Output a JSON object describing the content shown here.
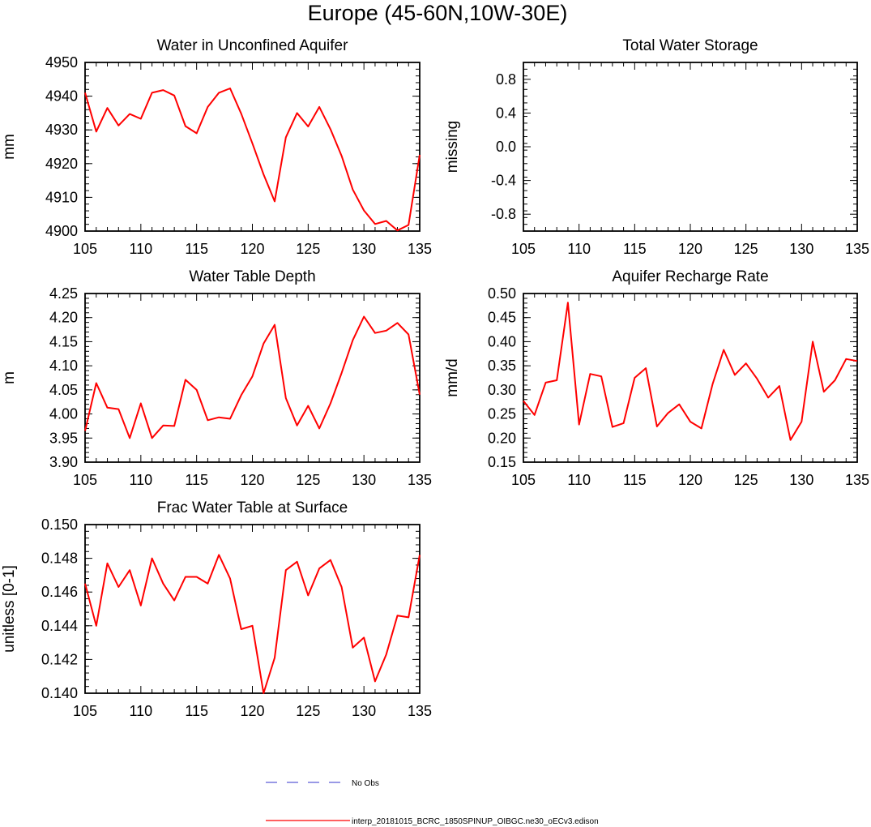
{
  "figure_title": "Europe (45-60N,10W-30E)",
  "legend": {
    "obs_label": "No Obs",
    "obs_color": "#3333cc",
    "model_label": "interp_20181015_BCRC_1850SPINUP_OIBGC.ne30_oECv3.edison",
    "model_color": "#ff0000"
  },
  "chart_data": [
    {
      "type": "line",
      "title": "Water in Unconfined Aquifer",
      "xlabel": "",
      "ylabel": "mm",
      "xlim": [
        105,
        135
      ],
      "ylim": [
        4900,
        4950
      ],
      "xticks": [
        105,
        110,
        115,
        120,
        125,
        130,
        135
      ],
      "yticks": [
        4900,
        4910,
        4920,
        4930,
        4940,
        4950
      ],
      "ytick_labels": [
        "4900",
        "4910",
        "4920",
        "4930",
        "4940",
        "4950"
      ],
      "x": [
        105,
        106,
        107,
        108,
        109,
        110,
        111,
        112,
        113,
        114,
        115,
        116,
        117,
        118,
        119,
        120,
        121,
        122,
        123,
        124,
        125,
        126,
        127,
        128,
        129,
        130,
        131,
        132,
        133,
        134,
        135
      ],
      "series": [
        {
          "name": "interp_20181015_BCRC_1850SPINUP_OIBGC.ne30_oECv3.edison",
          "values": [
            4941,
            4929.5,
            4936.5,
            4931.3,
            4934.7,
            4933.3,
            4941,
            4941.8,
            4940.2,
            4931.1,
            4929,
            4936.8,
            4941,
            4942.3,
            4934.8,
            4926,
            4916.8,
            4908.8,
            4927.8,
            4935,
            4931,
            4936.8,
            4930.2,
            4922.3,
            4912.3,
            4906.1,
            4902.1,
            4903,
            4900.2,
            4901.8,
            4922.6
          ]
        }
      ]
    },
    {
      "type": "line",
      "title": "Total Water Storage",
      "xlabel": "",
      "ylabel": "missing",
      "xlim": [
        105,
        135
      ],
      "ylim": [
        -1.0,
        1.0
      ],
      "xticks": [
        105,
        110,
        115,
        120,
        125,
        130,
        135
      ],
      "yticks": [
        -0.8,
        -0.4,
        0.0,
        0.4,
        0.8
      ],
      "ytick_labels": [
        "-0.8",
        "-0.4",
        "0.0",
        "0.4",
        "0.8"
      ],
      "x": [],
      "series": []
    },
    {
      "type": "line",
      "title": "Water Table Depth",
      "xlabel": "",
      "ylabel": "m",
      "xlim": [
        105,
        135
      ],
      "ylim": [
        3.9,
        4.25
      ],
      "xticks": [
        105,
        110,
        115,
        120,
        125,
        130,
        135
      ],
      "yticks": [
        3.9,
        3.95,
        4.0,
        4.05,
        4.1,
        4.15,
        4.2,
        4.25
      ],
      "ytick_labels": [
        "3.90",
        "3.95",
        "4.00",
        "4.05",
        "4.10",
        "4.15",
        "4.20",
        "4.25"
      ],
      "x": [
        105,
        106,
        107,
        108,
        109,
        110,
        111,
        112,
        113,
        114,
        115,
        116,
        117,
        118,
        119,
        120,
        121,
        122,
        123,
        124,
        125,
        126,
        127,
        128,
        129,
        130,
        131,
        132,
        133,
        134,
        135
      ],
      "series": [
        {
          "name": "interp_20181015_BCRC_1850SPINUP_OIBGC.ne30_oECv3.edison",
          "values": [
            3.965,
            4.064,
            4.013,
            4.01,
            3.95,
            4.022,
            3.95,
            3.976,
            3.975,
            4.071,
            4.05,
            3.987,
            3.993,
            3.99,
            4.039,
            4.078,
            4.146,
            4.185,
            4.033,
            3.976,
            4.017,
            3.97,
            4.022,
            4.085,
            4.153,
            4.202,
            4.168,
            4.173,
            4.189,
            4.165,
            4.04
          ]
        }
      ]
    },
    {
      "type": "line",
      "title": "Aquifer Recharge Rate",
      "xlabel": "",
      "ylabel": "mm/d",
      "xlim": [
        105,
        135
      ],
      "ylim": [
        0.15,
        0.5
      ],
      "xticks": [
        105,
        110,
        115,
        120,
        125,
        130,
        135
      ],
      "yticks": [
        0.15,
        0.2,
        0.25,
        0.3,
        0.35,
        0.4,
        0.45,
        0.5
      ],
      "ytick_labels": [
        "0.15",
        "0.20",
        "0.25",
        "0.30",
        "0.35",
        "0.40",
        "0.45",
        "0.50"
      ],
      "x": [
        105,
        106,
        107,
        108,
        109,
        110,
        111,
        112,
        113,
        114,
        115,
        116,
        117,
        118,
        119,
        120,
        121,
        122,
        123,
        124,
        125,
        126,
        127,
        128,
        129,
        130,
        131,
        132,
        133,
        134,
        135
      ],
      "series": [
        {
          "name": "interp_20181015_BCRC_1850SPINUP_OIBGC.ne30_oECv3.edison",
          "values": [
            0.277,
            0.248,
            0.315,
            0.32,
            0.481,
            0.228,
            0.333,
            0.328,
            0.223,
            0.231,
            0.325,
            0.345,
            0.224,
            0.252,
            0.27,
            0.234,
            0.22,
            0.312,
            0.383,
            0.331,
            0.355,
            0.323,
            0.284,
            0.308,
            0.196,
            0.234,
            0.4,
            0.296,
            0.32,
            0.364,
            0.36
          ]
        }
      ]
    },
    {
      "type": "line",
      "title": "Frac Water Table at Surface",
      "xlabel": "",
      "ylabel": "unitless [0-1]",
      "xlim": [
        105,
        135
      ],
      "ylim": [
        0.14,
        0.15
      ],
      "xticks": [
        105,
        110,
        115,
        120,
        125,
        130,
        135
      ],
      "yticks": [
        0.14,
        0.142,
        0.144,
        0.146,
        0.148,
        0.15
      ],
      "ytick_labels": [
        "0.140",
        "0.142",
        "0.144",
        "0.146",
        "0.148",
        "0.150"
      ],
      "x": [
        105,
        106,
        107,
        108,
        109,
        110,
        111,
        112,
        113,
        114,
        115,
        116,
        117,
        118,
        119,
        120,
        121,
        122,
        123,
        124,
        125,
        126,
        127,
        128,
        129,
        130,
        131,
        132,
        133,
        134,
        135
      ],
      "series": [
        {
          "name": "interp_20181015_BCRC_1850SPINUP_OIBGC.ne30_oECv3.edison",
          "values": [
            0.1465,
            0.144,
            0.1477,
            0.1463,
            0.1473,
            0.1452,
            0.148,
            0.1465,
            0.1455,
            0.1469,
            0.1469,
            0.1465,
            0.1482,
            0.1468,
            0.1438,
            0.144,
            0.14,
            0.1421,
            0.1473,
            0.1478,
            0.1458,
            0.1474,
            0.1479,
            0.1463,
            0.1427,
            0.1433,
            0.1407,
            0.1423,
            0.1446,
            0.1445,
            0.1482
          ]
        }
      ]
    }
  ]
}
